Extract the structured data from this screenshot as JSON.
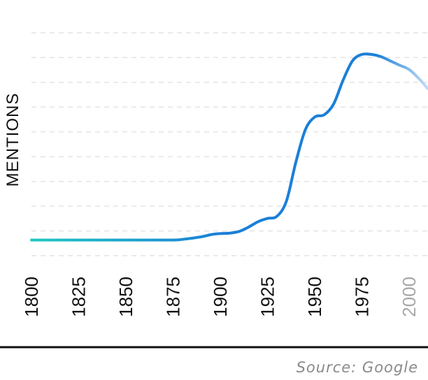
{
  "chart_data": {
    "type": "line",
    "ylabel": "MENTIONS",
    "xlim": [
      1800,
      2010
    ],
    "ylim": [
      0,
      100
    ],
    "x_ticks": [
      "1800",
      "1825",
      "1850",
      "1875",
      "1900",
      "1925",
      "1950",
      "1975",
      "2000"
    ],
    "grid": true,
    "colors": {
      "start": "#1ec8c0",
      "main": "#1a7fd8",
      "fade": "#c7dcf6",
      "faded_tick": "#a8a8a8"
    },
    "series": [
      {
        "x": [
          1800,
          1820,
          1840,
          1860,
          1875,
          1880,
          1890,
          1895,
          1900,
          1905,
          1910,
          1915,
          1920,
          1925,
          1930,
          1935,
          1940,
          1945,
          1950,
          1955,
          1960,
          1965,
          1970,
          1975,
          1980,
          1985,
          1990,
          1995,
          2000,
          2005,
          2010
        ],
        "y": [
          4,
          4,
          4,
          4,
          4,
          4.3,
          5.5,
          6.5,
          7,
          7.2,
          8,
          10,
          12.5,
          14,
          15,
          22,
          40,
          55,
          61,
          62,
          67,
          78,
          87,
          90,
          90,
          89,
          87,
          85,
          83,
          79,
          74
        ]
      }
    ]
  },
  "source_text": "Source: Google"
}
